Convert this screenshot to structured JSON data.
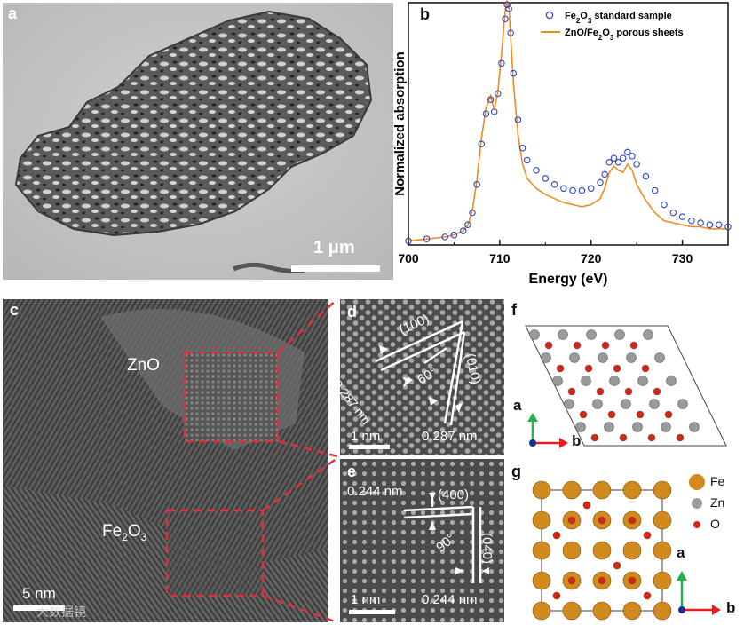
{
  "panels": {
    "a": {
      "label": "a",
      "scale_bar": "1 μm"
    },
    "b": {
      "label": "b"
    },
    "c": {
      "label": "c",
      "scale_bar": "5 nm",
      "region_labels": [
        "ZnO",
        "Fe",
        "2",
        "O",
        "3"
      ],
      "watermark": "大数据镜"
    },
    "d": {
      "label": "d",
      "plane_top": "(100)",
      "plane_right": "(010)",
      "angle": "60°",
      "d_left": "0.287 nm",
      "d_right": "0.287 nm",
      "scale_bar": "1 nm"
    },
    "e": {
      "label": "e",
      "d_top": "0.244 nm",
      "plane_top": "(400)",
      "plane_right": "(040)",
      "angle": "90°",
      "d_right": "0.244 nm",
      "scale_bar": "1 nm"
    },
    "f": {
      "label": "f",
      "axis_a": "a",
      "axis_b": "b"
    },
    "g": {
      "label": "g",
      "axis_a": "a",
      "axis_b": "b",
      "legend": [
        "Fe",
        "Zn",
        "O"
      ]
    }
  },
  "colors": {
    "fe": "#d18a1e",
    "zn": "#9a9a9a",
    "o": "#d9241c",
    "grid_red": "#e0303a",
    "std_marker": "#2b45c8",
    "sample_line": "#f08c1e"
  },
  "chart_data": {
    "type": "line",
    "xlabel": "Energy (eV)",
    "ylabel": "Normalized absorption",
    "xlim": [
      700,
      735
    ],
    "xticks": [
      "700",
      "710",
      "720",
      "730"
    ],
    "ylim": [
      0,
      1.2
    ],
    "yticks_shown": false,
    "legend_position": "top-right",
    "series": [
      {
        "name_parts": [
          "Fe",
          "2",
          "O",
          "3",
          " standard sample"
        ],
        "style": "open-circle markers",
        "x": [
          700,
          702,
          704,
          705,
          706,
          706.5,
          707,
          707.5,
          708,
          708.5,
          709,
          709.4,
          709.8,
          710.2,
          710.6,
          710.8,
          711,
          711.2,
          711.5,
          712,
          712.5,
          713,
          714,
          715,
          716,
          717,
          718,
          719,
          720,
          721,
          721.5,
          722,
          722.5,
          723,
          723.5,
          724,
          724.5,
          725,
          726,
          727,
          728,
          729,
          730,
          731,
          732,
          733,
          734,
          735
        ],
        "y": [
          0.02,
          0.03,
          0.04,
          0.05,
          0.07,
          0.1,
          0.16,
          0.3,
          0.5,
          0.65,
          0.72,
          0.66,
          0.75,
          0.9,
          1.12,
          1.19,
          1.17,
          1.05,
          0.85,
          0.62,
          0.48,
          0.42,
          0.37,
          0.33,
          0.3,
          0.28,
          0.27,
          0.27,
          0.28,
          0.31,
          0.35,
          0.41,
          0.43,
          0.41,
          0.43,
          0.46,
          0.44,
          0.4,
          0.34,
          0.27,
          0.2,
          0.16,
          0.14,
          0.12,
          0.11,
          0.1,
          0.1,
          0.09
        ]
      },
      {
        "name_parts": [
          "ZnO/Fe",
          "2",
          "O",
          "3",
          " porous sheets"
        ],
        "style": "solid line",
        "x": [
          700,
          702,
          704,
          705,
          706,
          706.5,
          707,
          707.5,
          708,
          708.5,
          709,
          709.4,
          709.8,
          710.2,
          710.6,
          710.8,
          711,
          711.2,
          711.5,
          712,
          712.5,
          713,
          714,
          715,
          716,
          717,
          718,
          719,
          720,
          721,
          721.5,
          722,
          722.5,
          723,
          723.5,
          724,
          724.5,
          725,
          726,
          727,
          728,
          729,
          730,
          731,
          732,
          733,
          734,
          735
        ],
        "y": [
          0.02,
          0.03,
          0.04,
          0.05,
          0.07,
          0.1,
          0.17,
          0.32,
          0.53,
          0.68,
          0.74,
          0.67,
          0.76,
          0.95,
          1.16,
          1.21,
          1.18,
          1.03,
          0.8,
          0.55,
          0.4,
          0.33,
          0.28,
          0.25,
          0.23,
          0.21,
          0.2,
          0.19,
          0.2,
          0.23,
          0.28,
          0.36,
          0.39,
          0.37,
          0.36,
          0.4,
          0.37,
          0.3,
          0.22,
          0.16,
          0.12,
          0.11,
          0.1,
          0.09,
          0.09,
          0.08,
          0.08,
          0.08
        ]
      }
    ]
  }
}
